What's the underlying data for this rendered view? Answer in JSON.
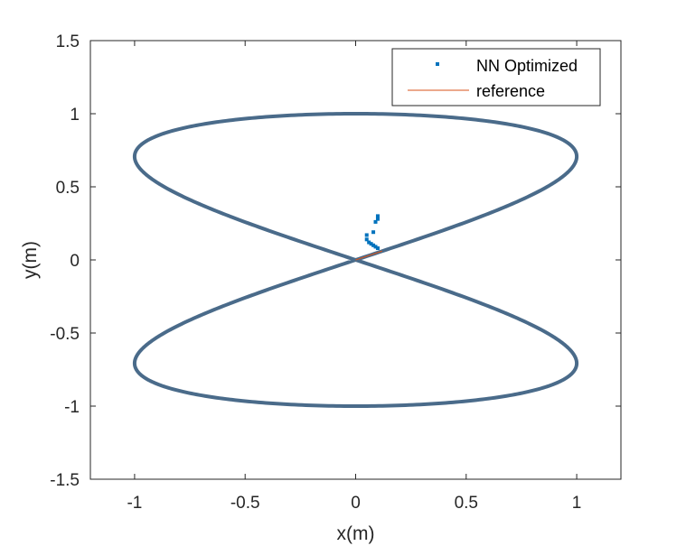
{
  "chart_data": {
    "type": "scatter",
    "title": "",
    "xlabel": "x(m)",
    "ylabel": "y(m)",
    "xlim": [
      -1.2,
      1.2
    ],
    "ylim": [
      -1.5,
      1.5
    ],
    "xticks": [
      -1,
      -0.5,
      0,
      0.5,
      1
    ],
    "xtick_labels": [
      "-1",
      "-0.5",
      "0",
      "0.5",
      "1"
    ],
    "yticks": [
      -1.5,
      -1,
      -0.5,
      0,
      0.5,
      1,
      1.5
    ],
    "ytick_labels": [
      "-1.5",
      "-1",
      "-0.5",
      "0",
      "0.5",
      "1",
      "1.5"
    ],
    "grid": false,
    "legend_position": "top-right",
    "colors": {
      "nn_optimized": "#0072BD",
      "reference": "#D95319",
      "trajectory_overlay": "#4A6B8A",
      "axes": "#262626"
    },
    "series": [
      {
        "name": "NN Optimized",
        "style": "points",
        "curve": "x = sin(t), y = sin(t)cos(t)... figure-eight traced as x = sin(t), y = 0.5*sin(2t) scaled; see points",
        "initial_points": [
          {
            "x": 0.1,
            "y": 0.3
          },
          {
            "x": 0.1,
            "y": 0.28
          },
          {
            "x": 0.09,
            "y": 0.26
          },
          {
            "x": 0.08,
            "y": 0.19
          },
          {
            "x": 0.05,
            "y": 0.17
          },
          {
            "x": 0.05,
            "y": 0.14
          },
          {
            "x": 0.06,
            "y": 0.12
          },
          {
            "x": 0.07,
            "y": 0.11
          },
          {
            "x": 0.08,
            "y": 0.1
          },
          {
            "x": 0.09,
            "y": 0.09
          },
          {
            "x": 0.1,
            "y": 0.08
          }
        ]
      },
      {
        "name": "reference",
        "style": "line",
        "start_segment": [
          {
            "x": 0.0,
            "y": 0.0
          },
          {
            "x": 0.12,
            "y": 0.06
          }
        ]
      }
    ]
  },
  "legend": {
    "items": [
      {
        "label": "NN Optimized",
        "kind": "marker"
      },
      {
        "label": "reference",
        "kind": "line"
      }
    ]
  }
}
